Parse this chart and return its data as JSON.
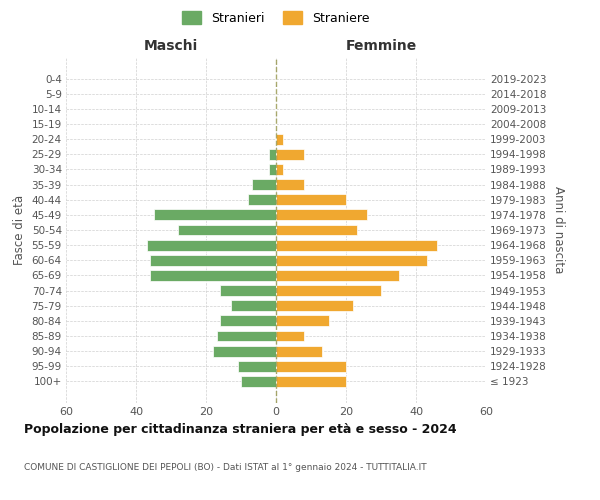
{
  "age_groups": [
    "100+",
    "95-99",
    "90-94",
    "85-89",
    "80-84",
    "75-79",
    "70-74",
    "65-69",
    "60-64",
    "55-59",
    "50-54",
    "45-49",
    "40-44",
    "35-39",
    "30-34",
    "25-29",
    "20-24",
    "15-19",
    "10-14",
    "5-9",
    "0-4"
  ],
  "birth_years": [
    "≤ 1923",
    "1924-1928",
    "1929-1933",
    "1934-1938",
    "1939-1943",
    "1944-1948",
    "1949-1953",
    "1954-1958",
    "1959-1963",
    "1964-1968",
    "1969-1973",
    "1974-1978",
    "1979-1983",
    "1984-1988",
    "1989-1993",
    "1994-1998",
    "1999-2003",
    "2004-2008",
    "2009-2013",
    "2014-2018",
    "2019-2023"
  ],
  "males": [
    0,
    0,
    0,
    0,
    0,
    2,
    2,
    7,
    8,
    35,
    28,
    37,
    36,
    36,
    16,
    13,
    16,
    17,
    18,
    11,
    10
  ],
  "females": [
    0,
    0,
    0,
    0,
    2,
    8,
    2,
    8,
    20,
    26,
    23,
    46,
    43,
    35,
    30,
    22,
    15,
    8,
    13,
    20,
    20
  ],
  "male_color": "#6aaa64",
  "female_color": "#f0a830",
  "bar_edge_color": "white",
  "background_color": "#ffffff",
  "grid_color": "#cccccc",
  "title": "Popolazione per cittadinanza straniera per età e sesso - 2024",
  "subtitle": "COMUNE DI CASTIGLIONE DEI PEPOLI (BO) - Dati ISTAT al 1° gennaio 2024 - TUTTITALIA.IT",
  "left_header": "Maschi",
  "right_header": "Femmine",
  "left_yaxis_label": "Fasce di età",
  "right_yaxis_label": "Anni di nascita",
  "legend_male": "Stranieri",
  "legend_female": "Straniere",
  "xlim": 60
}
